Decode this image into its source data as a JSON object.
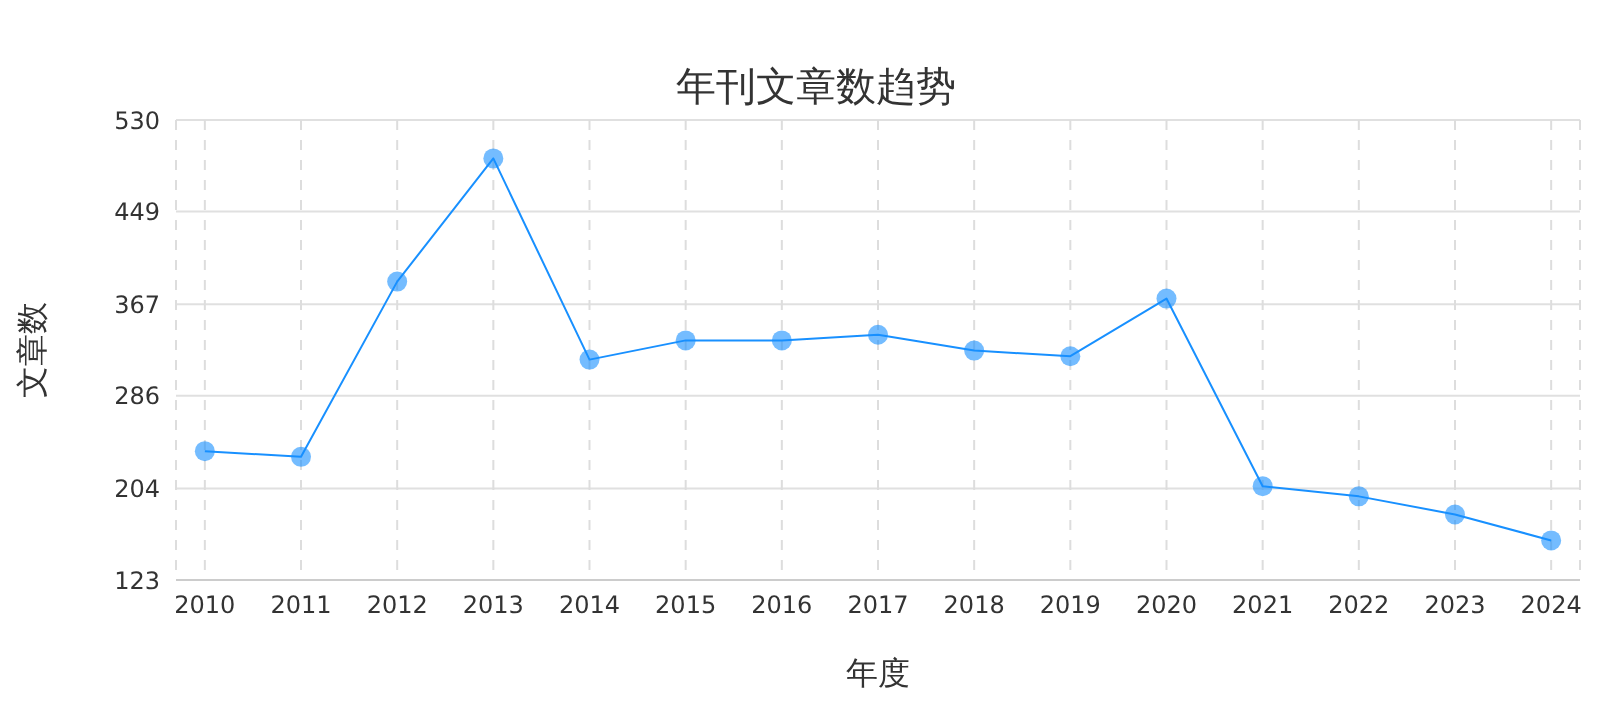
{
  "chart_data": {
    "type": "line",
    "title": "年刊文章数趋势",
    "xlabel": "年度",
    "ylabel": "文章数",
    "categories": [
      "2010",
      "2011",
      "2012",
      "2013",
      "2014",
      "2015",
      "2016",
      "2017",
      "2018",
      "2019",
      "2020",
      "2021",
      "2022",
      "2023",
      "2024"
    ],
    "series": [
      {
        "color": "#1890ff",
        "values": [
          237,
          232,
          387,
          496,
          318,
          335,
          335,
          340,
          326,
          321,
          372,
          206,
          197,
          181,
          158
        ]
      }
    ],
    "ylim": [
      123,
      530
    ],
    "yticks": [
      123,
      204,
      286,
      367,
      449,
      530
    ],
    "grid": true,
    "marker": "circle",
    "line_style": "solid"
  }
}
